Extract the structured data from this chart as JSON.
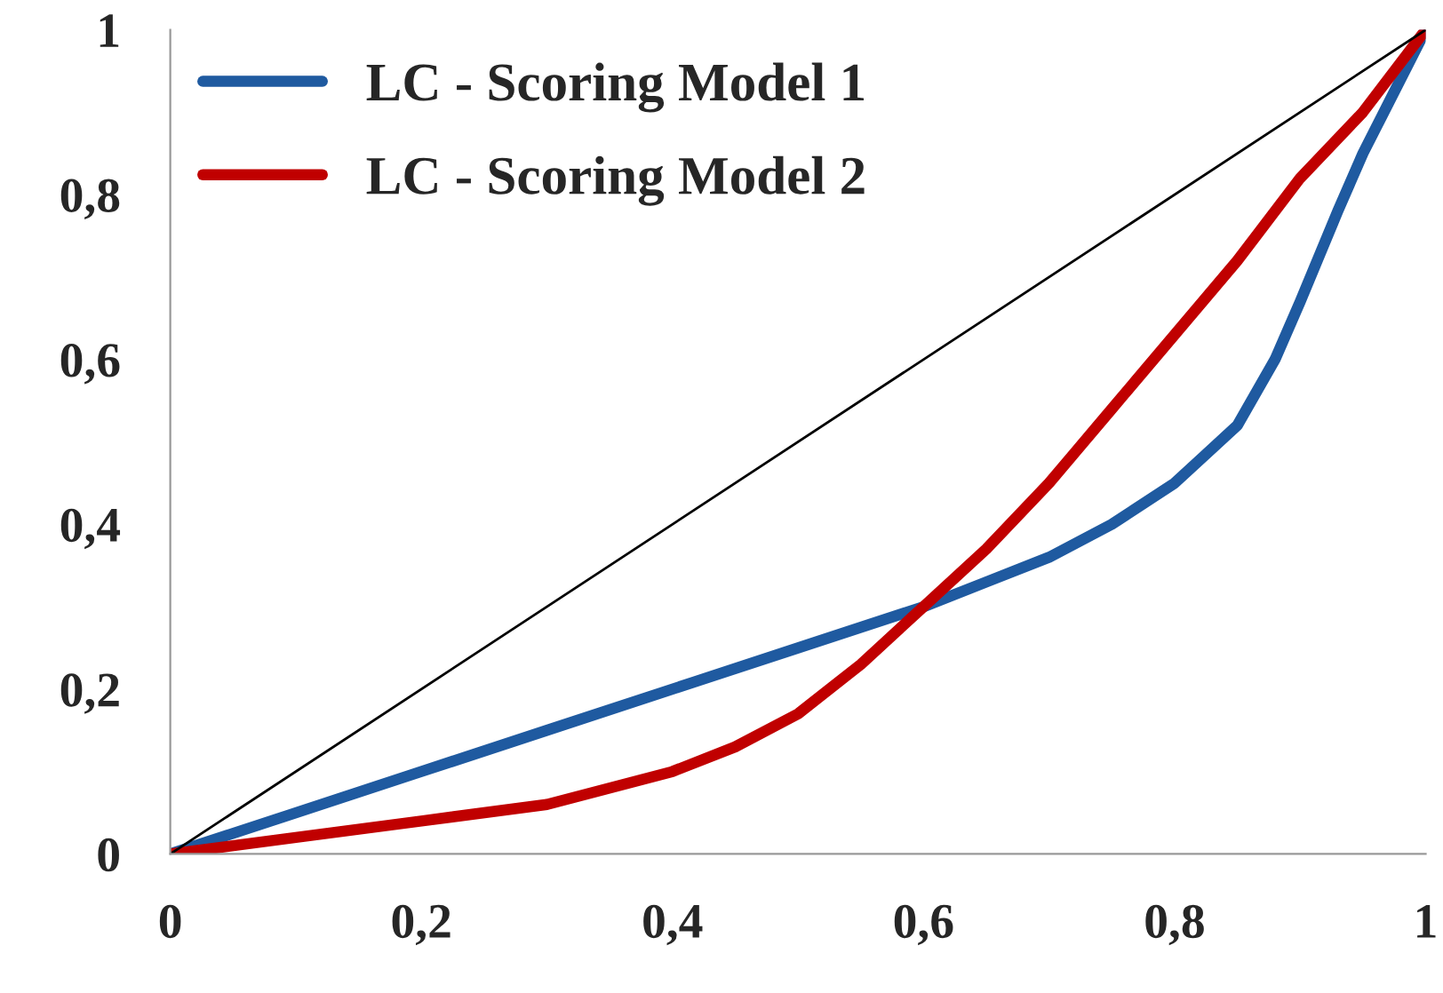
{
  "chart_data": {
    "type": "line",
    "series": [
      {
        "name": "LC - Scoring Model 1",
        "color": "#1f5aa0",
        "x": [
          0,
          0.1,
          0.2,
          0.3,
          0.4,
          0.5,
          0.6,
          0.65,
          0.7,
          0.75,
          0.8,
          0.85,
          0.88,
          0.9,
          0.93,
          0.95,
          0.97,
          1
        ],
        "values": [
          0,
          0.05,
          0.1,
          0.15,
          0.2,
          0.25,
          0.3,
          0.33,
          0.36,
          0.4,
          0.45,
          0.52,
          0.6,
          0.67,
          0.78,
          0.85,
          0.91,
          1
        ]
      },
      {
        "name": "LC - Scoring Model 2",
        "color": "#c00000",
        "x": [
          0,
          0.1,
          0.2,
          0.3,
          0.4,
          0.45,
          0.5,
          0.55,
          0.6,
          0.65,
          0.7,
          0.75,
          0.8,
          0.85,
          0.9,
          0.95,
          1
        ],
        "values": [
          0,
          0.02,
          0.04,
          0.06,
          0.1,
          0.13,
          0.17,
          0.23,
          0.3,
          0.37,
          0.45,
          0.54,
          0.63,
          0.72,
          0.82,
          0.9,
          1
        ]
      },
      {
        "color": "#000000",
        "x": [
          0,
          1
        ],
        "values": [
          0,
          1
        ]
      }
    ],
    "xlim": [
      0,
      1
    ],
    "ylim": [
      0,
      1
    ],
    "xticks": [
      0,
      {
        "value": 0.2,
        "label": "0,2"
      },
      {
        "value": 0.4,
        "label": "0,4"
      },
      {
        "value": 0.6,
        "label": "0,6"
      },
      {
        "value": 0.8,
        "label": "0,8"
      },
      1
    ],
    "yticks": [
      0,
      {
        "value": 0.2,
        "label": "0,2"
      },
      {
        "value": 0.4,
        "label": "0,4"
      },
      {
        "value": 0.6,
        "label": "0,6"
      },
      {
        "value": 0.8,
        "label": "0,8"
      },
      1
    ],
    "legend": "top left",
    "grid": false
  }
}
